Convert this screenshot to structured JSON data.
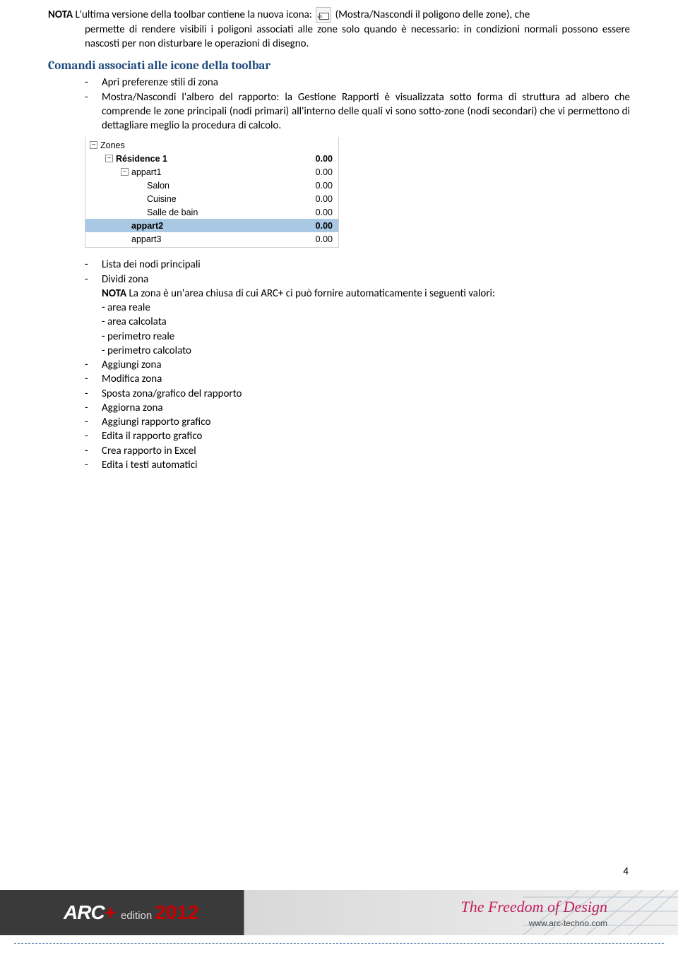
{
  "note": {
    "prefix": "NOTA",
    "line1": " L'ultima versione della toolbar contiene la nuova icona: ",
    "line1_after": " (Mostra/Nascondi il poligono delle zone), che",
    "rest": "permette di rendere visibili i poligoni associati alle zone solo quando è necessario: in condizioni normali possono essere nascosti per non disturbare le operazioni di disegno."
  },
  "heading": "Comandi associati alle icone della toolbar",
  "list1": [
    "Apri preferenze stili di zona",
    "Mostra/Nascondi l'albero del rapporto: la Gestione Rapporti è visualizzata sotto forma di struttura ad albero che comprende le zone principali (nodi primari) all'interno delle quali vi sono sotto-zone (nodi secondari) che vi permettono di dettagliare meglio la procedura di calcolo."
  ],
  "tree": {
    "rows": [
      {
        "indent": 0,
        "toggle": "−",
        "label": "Zones",
        "value": "",
        "bold": false,
        "selected": false
      },
      {
        "indent": 1,
        "toggle": "−",
        "label": "Résidence 1",
        "value": "0.00",
        "bold": true,
        "selected": false
      },
      {
        "indent": 2,
        "toggle": "−",
        "label": "appart1",
        "value": "0.00",
        "bold": false,
        "selected": false
      },
      {
        "indent": 3,
        "toggle": "",
        "label": "Salon",
        "value": "0.00",
        "bold": false,
        "selected": false
      },
      {
        "indent": 3,
        "toggle": "",
        "label": "Cuisine",
        "value": "0.00",
        "bold": false,
        "selected": false
      },
      {
        "indent": 3,
        "toggle": "",
        "label": "Salle de bain",
        "value": "0.00",
        "bold": false,
        "selected": false
      },
      {
        "indent": 2,
        "toggle": "",
        "label": "appart2",
        "value": "0.00",
        "bold": true,
        "selected": true
      },
      {
        "indent": 2,
        "toggle": "",
        "label": "appart3",
        "value": "0.00",
        "bold": false,
        "selected": false
      }
    ]
  },
  "list2": {
    "item0": "Lista dei nodi principali",
    "item1": "Dividi zona",
    "item1_nota_prefix": "NOTA",
    "item1_nota": " La zona è un'area chiusa di cui ARC+ ci può fornire automaticamente i seguenti valori:",
    "item1_sub": [
      "- area reale",
      "- area calcolata",
      "- perimetro reale",
      "- perimetro calcolato"
    ],
    "item2": "Aggiungi zona",
    "item3": "Modifica zona",
    "item4": "Sposta zona/grafico del rapporto",
    "item5": "Aggiorna zona",
    "item6": "Aggiungi rapporto grafico",
    "item7": "Edita il rapporto grafico",
    "item8": "Crea rapporto in Excel",
    "item9": "Edita i testi automatici"
  },
  "page_number": "4",
  "footer": {
    "logo": "ARC",
    "plus": "+",
    "edition": "edition",
    "year": "2012",
    "tagline": "The Freedom of Design",
    "url": "www.arc-techno.com"
  },
  "colors": {
    "heading": "#1f497d",
    "accent_red": "#cc0000",
    "tagline": "#c41e5a",
    "tree_selected": "#a8c8e4",
    "dotted": "#4a7aa8"
  }
}
